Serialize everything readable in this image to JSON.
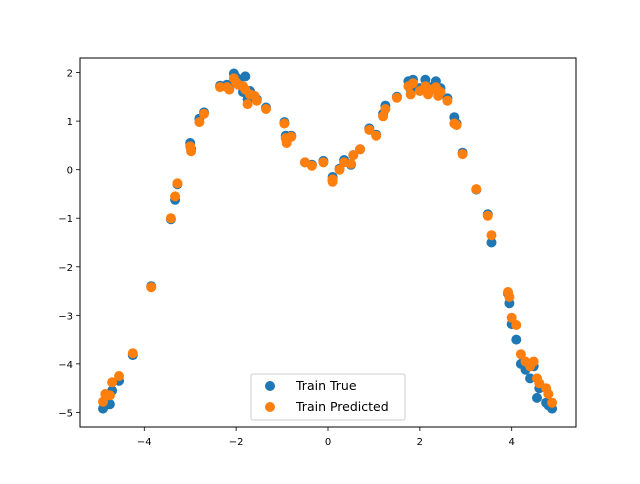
{
  "chart_data": {
    "type": "scatter",
    "xlim": [
      -5.4,
      5.4
    ],
    "ylim": [
      -5.3,
      2.3
    ],
    "x_ticks": [
      -4,
      -2,
      0,
      2,
      4
    ],
    "y_ticks": [
      -5,
      -4,
      -3,
      -2,
      -1,
      0,
      1,
      2
    ],
    "x_tick_labels": [
      "−4",
      "−2",
      "0",
      "2",
      "4"
    ],
    "y_tick_labels": [
      "−5",
      "−4",
      "−3",
      "−2",
      "−1",
      "0",
      "1",
      "2"
    ],
    "grid": false,
    "legend_position": "lower center",
    "series": [
      {
        "name": "Train True",
        "color": "#1f77b4",
        "points": [
          [
            -4.9,
            -4.92
          ],
          [
            -4.85,
            -4.75
          ],
          [
            -4.75,
            -4.83
          ],
          [
            -4.7,
            -4.55
          ],
          [
            -4.55,
            -4.35
          ],
          [
            -4.25,
            -3.82
          ],
          [
            -3.85,
            -2.4
          ],
          [
            -3.42,
            -1.02
          ],
          [
            -3.33,
            -0.62
          ],
          [
            -3.28,
            -0.3
          ],
          [
            -3.0,
            0.55
          ],
          [
            -2.98,
            0.42
          ],
          [
            -2.8,
            1.05
          ],
          [
            -2.7,
            1.18
          ],
          [
            -2.35,
            1.73
          ],
          [
            -2.2,
            1.75
          ],
          [
            -2.15,
            1.68
          ],
          [
            -2.05,
            1.98
          ],
          [
            -2.0,
            1.9
          ],
          [
            -1.95,
            1.82
          ],
          [
            -1.85,
            1.6
          ],
          [
            -1.8,
            1.92
          ],
          [
            -1.75,
            1.45
          ],
          [
            -1.7,
            1.62
          ],
          [
            -1.6,
            1.5
          ],
          [
            -1.55,
            1.45
          ],
          [
            -1.35,
            1.28
          ],
          [
            -0.95,
            0.98
          ],
          [
            -0.92,
            0.7
          ],
          [
            -0.9,
            0.58
          ],
          [
            -0.8,
            0.7
          ],
          [
            -0.5,
            0.15
          ],
          [
            -0.35,
            0.1
          ],
          [
            -0.1,
            0.18
          ],
          [
            0.1,
            -0.15
          ],
          [
            0.1,
            -0.22
          ],
          [
            0.25,
            0.02
          ],
          [
            0.35,
            0.2
          ],
          [
            0.5,
            0.1
          ],
          [
            0.55,
            0.3
          ],
          [
            0.7,
            0.42
          ],
          [
            0.9,
            0.85
          ],
          [
            1.05,
            0.72
          ],
          [
            1.2,
            1.15
          ],
          [
            1.25,
            1.32
          ],
          [
            1.5,
            1.5
          ],
          [
            1.75,
            1.82
          ],
          [
            1.8,
            1.65
          ],
          [
            1.85,
            1.85
          ],
          [
            2.0,
            1.68
          ],
          [
            2.12,
            1.85
          ],
          [
            2.18,
            1.62
          ],
          [
            2.25,
            1.7
          ],
          [
            2.35,
            1.82
          ],
          [
            2.4,
            1.58
          ],
          [
            2.45,
            1.68
          ],
          [
            2.6,
            1.47
          ],
          [
            2.75,
            1.08
          ],
          [
            2.8,
            0.95
          ],
          [
            2.93,
            0.35
          ],
          [
            3.23,
            -0.41
          ],
          [
            3.48,
            -0.92
          ],
          [
            3.56,
            -1.5
          ],
          [
            3.92,
            -2.55
          ],
          [
            3.95,
            -2.75
          ],
          [
            4.0,
            -3.18
          ],
          [
            4.1,
            -3.5
          ],
          [
            4.2,
            -4.0
          ],
          [
            4.3,
            -4.12
          ],
          [
            4.4,
            -4.3
          ],
          [
            4.48,
            -4.05
          ],
          [
            4.55,
            -4.7
          ],
          [
            4.6,
            -4.5
          ],
          [
            4.75,
            -4.8
          ],
          [
            4.8,
            -4.85
          ],
          [
            4.88,
            -4.92
          ]
        ]
      },
      {
        "name": "Train Predicted",
        "color": "#ff7f0e",
        "points": [
          [
            -4.9,
            -4.78
          ],
          [
            -4.85,
            -4.62
          ],
          [
            -4.75,
            -4.65
          ],
          [
            -4.7,
            -4.38
          ],
          [
            -4.55,
            -4.25
          ],
          [
            -4.25,
            -3.78
          ],
          [
            -3.85,
            -2.42
          ],
          [
            -3.42,
            -1.0
          ],
          [
            -3.33,
            -0.55
          ],
          [
            -3.28,
            -0.28
          ],
          [
            -3.0,
            0.48
          ],
          [
            -2.98,
            0.38
          ],
          [
            -2.8,
            0.98
          ],
          [
            -2.7,
            1.15
          ],
          [
            -2.35,
            1.7
          ],
          [
            -2.2,
            1.7
          ],
          [
            -2.15,
            1.65
          ],
          [
            -2.05,
            1.88
          ],
          [
            -2.0,
            1.8
          ],
          [
            -1.95,
            1.75
          ],
          [
            -1.85,
            1.72
          ],
          [
            -1.8,
            1.65
          ],
          [
            -1.75,
            1.35
          ],
          [
            -1.7,
            1.55
          ],
          [
            -1.6,
            1.52
          ],
          [
            -1.55,
            1.42
          ],
          [
            -1.35,
            1.25
          ],
          [
            -0.95,
            0.95
          ],
          [
            -0.92,
            0.65
          ],
          [
            -0.9,
            0.55
          ],
          [
            -0.8,
            0.68
          ],
          [
            -0.5,
            0.15
          ],
          [
            -0.35,
            0.08
          ],
          [
            -0.1,
            0.15
          ],
          [
            0.1,
            -0.2
          ],
          [
            0.1,
            -0.25
          ],
          [
            0.25,
            0.0
          ],
          [
            0.35,
            0.15
          ],
          [
            0.5,
            0.12
          ],
          [
            0.55,
            0.3
          ],
          [
            0.7,
            0.42
          ],
          [
            0.9,
            0.82
          ],
          [
            1.05,
            0.7
          ],
          [
            1.2,
            1.1
          ],
          [
            1.25,
            1.25
          ],
          [
            1.5,
            1.48
          ],
          [
            1.75,
            1.72
          ],
          [
            1.8,
            1.55
          ],
          [
            1.85,
            1.78
          ],
          [
            2.0,
            1.62
          ],
          [
            2.12,
            1.72
          ],
          [
            2.18,
            1.55
          ],
          [
            2.25,
            1.65
          ],
          [
            2.35,
            1.7
          ],
          [
            2.4,
            1.52
          ],
          [
            2.45,
            1.6
          ],
          [
            2.6,
            1.42
          ],
          [
            2.75,
            0.95
          ],
          [
            2.8,
            0.92
          ],
          [
            2.93,
            0.32
          ],
          [
            3.23,
            -0.4
          ],
          [
            3.48,
            -0.95
          ],
          [
            3.56,
            -1.35
          ],
          [
            3.92,
            -2.52
          ],
          [
            3.95,
            -2.62
          ],
          [
            4.0,
            -3.05
          ],
          [
            4.1,
            -3.2
          ],
          [
            4.2,
            -3.8
          ],
          [
            4.3,
            -3.95
          ],
          [
            4.4,
            -4.05
          ],
          [
            4.48,
            -3.95
          ],
          [
            4.55,
            -4.3
          ],
          [
            4.6,
            -4.4
          ],
          [
            4.75,
            -4.5
          ],
          [
            4.8,
            -4.62
          ],
          [
            4.88,
            -4.8
          ]
        ]
      }
    ]
  }
}
